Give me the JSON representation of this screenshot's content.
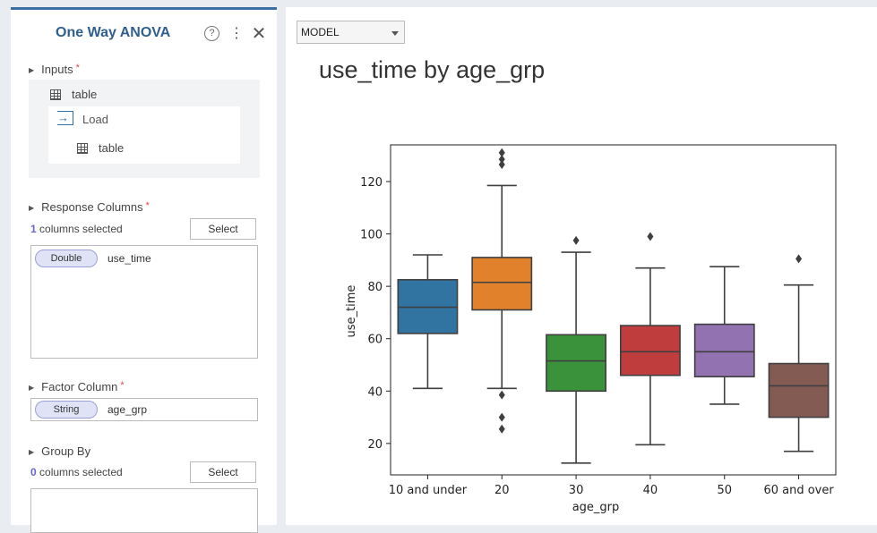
{
  "panel": {
    "title": "One Way ANOVA",
    "help_icon": "?",
    "more_icon": "⋮",
    "close_icon": "✕"
  },
  "inputs": {
    "label": "Inputs",
    "required": "*",
    "table_label": "table",
    "load_label": "Load",
    "load_table_label": "table"
  },
  "response": {
    "label": "Response Columns",
    "required": "*",
    "count": "1",
    "count_suffix": " columns selected",
    "select_label": "Select",
    "items": [
      {
        "type": "Double",
        "name": "use_time"
      }
    ]
  },
  "factor": {
    "label": "Factor Column",
    "required": "*",
    "type": "String",
    "name": "age_grp"
  },
  "group_by": {
    "label": "Group By",
    "count": "0",
    "count_suffix": " columns selected",
    "select_label": "Select"
  },
  "model_select": {
    "value": "MODEL"
  },
  "chart_data": {
    "type": "box",
    "title": "use_time by age_grp",
    "xlabel": "age_grp",
    "ylabel": "use_time",
    "categories": [
      "10 and under",
      "20",
      "30",
      "40",
      "50",
      "60 and over"
    ],
    "yticks": [
      20,
      40,
      60,
      80,
      100,
      120
    ],
    "ylim": [
      8,
      134
    ],
    "boxes": [
      {
        "category": "10 and under",
        "min": 41,
        "q1": 62,
        "median": 72,
        "q3": 82.5,
        "max": 92,
        "outliers": [],
        "color": "#3274a1"
      },
      {
        "category": "20",
        "min": 41,
        "q1": 71,
        "median": 81.5,
        "q3": 91,
        "max": 118.5,
        "outliers": [
          131,
          128.5,
          126.5,
          38.5,
          30,
          25.5
        ],
        "color": "#e1812c"
      },
      {
        "category": "30",
        "min": 12.5,
        "q1": 40,
        "median": 51.5,
        "q3": 61.5,
        "max": 93,
        "outliers": [
          97.5
        ],
        "color": "#3a923a"
      },
      {
        "category": "40",
        "min": 19.5,
        "q1": 46,
        "median": 55,
        "q3": 65,
        "max": 87,
        "outliers": [
          99
        ],
        "color": "#c03d3e"
      },
      {
        "category": "50",
        "min": 35,
        "q1": 45.5,
        "median": 55,
        "q3": 65.5,
        "max": 87.5,
        "outliers": [],
        "color": "#9372b2"
      },
      {
        "category": "60 and over",
        "min": 17,
        "q1": 30,
        "median": 42,
        "q3": 50.5,
        "max": 80.5,
        "outliers": [
          90.5
        ],
        "color": "#845b53"
      }
    ]
  }
}
